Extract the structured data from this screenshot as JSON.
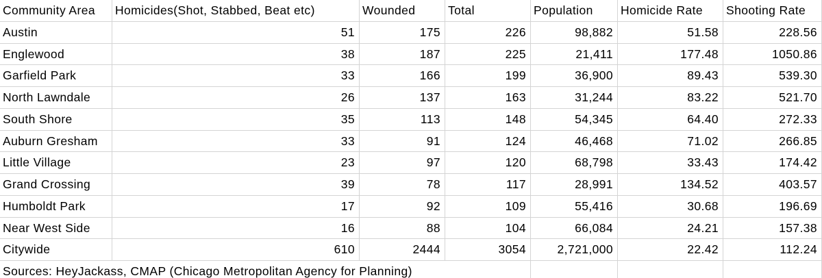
{
  "sheet": {
    "columns": [
      "Community Area",
      "Homicides(Shot, Stabbed, Beat etc)",
      "Wounded",
      "Total",
      "Population",
      "Homicide Rate",
      "Shooting Rate"
    ],
    "rows": [
      [
        "Austin",
        "51",
        "175",
        "226",
        "98,882",
        "51.58",
        "228.56"
      ],
      [
        "Englewood",
        "38",
        "187",
        "225",
        "21,411",
        "177.48",
        "1050.86"
      ],
      [
        "Garfield Park",
        "33",
        "166",
        "199",
        "36,900",
        "89.43",
        "539.30"
      ],
      [
        "North Lawndale",
        "26",
        "137",
        "163",
        "31,244",
        "83.22",
        "521.70"
      ],
      [
        "South Shore",
        "35",
        "113",
        "148",
        "54,345",
        "64.40",
        "272.33"
      ],
      [
        "Auburn Gresham",
        "33",
        "91",
        "124",
        "46,468",
        "71.02",
        "266.85"
      ],
      [
        "Little Village",
        "23",
        "97",
        "120",
        "68,798",
        "33.43",
        "174.42"
      ],
      [
        "Grand Crossing",
        "39",
        "78",
        "117",
        "28,991",
        "134.52",
        "403.57"
      ],
      [
        "Humboldt Park",
        "17",
        "92",
        "109",
        "55,416",
        "30.68",
        "196.69"
      ],
      [
        "Near West Side",
        "16",
        "88",
        "104",
        "66,084",
        "24.21",
        "157.38"
      ],
      [
        "Citywide",
        "610",
        "2444",
        "3054",
        "2,721,000",
        "22.42",
        "112.24"
      ]
    ],
    "footer_note": "Sources: HeyJackass, CMAP (Chicago Metropolitan Agency for Planning)"
  },
  "colors": {
    "gridline": "#d4d4d4",
    "text": "#000000",
    "background": "#ffffff"
  }
}
